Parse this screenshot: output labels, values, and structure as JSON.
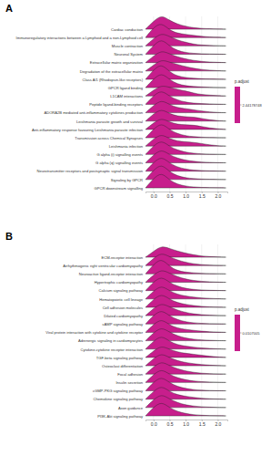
{
  "chart_data": [
    {
      "type": "ridgeline",
      "title": "A",
      "color": "#c71e8c",
      "grid": true,
      "colorbar_title": "p.adjust",
      "colorbar_ticks": [
        2.44178748
      ],
      "xlim": [
        -0.25,
        2.3
      ],
      "xticks": [
        {
          "value": 0,
          "label": "0.0"
        },
        {
          "value": 0.5,
          "label": "0.5"
        },
        {
          "value": 1,
          "label": "1.0"
        },
        {
          "value": 1.5,
          "label": "1.5"
        },
        {
          "value": 2,
          "label": "2.0"
        }
      ],
      "x": [
        -0.25,
        0,
        0.25,
        0.5,
        0.75,
        1,
        1.25,
        1.5,
        1.75,
        2,
        2.25
      ],
      "categories": [
        "Cardiac conduction",
        "Immunoregulatory interactions between a Lymphoid and a non-Lymphoid cell",
        "Muscle contraction",
        "Neuronal System",
        "Extracellular matrix organization",
        "Degradation of the extracellular matrix",
        "Class A/1 (Rhodopsin-like receptors)",
        "GPCR ligand binding",
        "L1CAM interactions",
        "Peptide ligand-binding receptors",
        "ADORA2B mediated anti-inflammatory cytokines production",
        "Leishmania parasite growth and survival",
        "Anti-inflammatory response favouring Leishmania parasite infection",
        "Transmission across Chemical Synapses",
        "Leishmania infection",
        "G alpha (i) signalling events",
        "G alpha (q) signalling events",
        "Neurotransmitter receptors and postsynaptic signal transmission",
        "Signaling by GPCR",
        "GPCR downstream signalling"
      ],
      "densities": [
        [
          0,
          0.55,
          1.0,
          0.6,
          0.35,
          0.2,
          0.1,
          0.05,
          0.03,
          0.01,
          0
        ],
        [
          0,
          0.7,
          1.05,
          0.5,
          0.3,
          0.22,
          0.15,
          0.08,
          0.04,
          0.02,
          0
        ],
        [
          0,
          0.5,
          0.9,
          0.65,
          0.4,
          0.25,
          0.12,
          0.06,
          0.03,
          0.01,
          0
        ],
        [
          0,
          0.6,
          1.1,
          0.55,
          0.25,
          0.12,
          0.06,
          0.03,
          0.02,
          0.01,
          0
        ],
        [
          0,
          0.45,
          0.85,
          0.6,
          0.4,
          0.25,
          0.15,
          0.08,
          0.04,
          0.02,
          0
        ],
        [
          0,
          0.4,
          0.8,
          0.6,
          0.45,
          0.3,
          0.18,
          0.1,
          0.05,
          0.02,
          0
        ],
        [
          0,
          0.65,
          1.1,
          0.5,
          0.22,
          0.12,
          0.07,
          0.04,
          0.02,
          0.01,
          0
        ],
        [
          0,
          0.6,
          1.05,
          0.55,
          0.25,
          0.13,
          0.08,
          0.05,
          0.03,
          0.01,
          0
        ],
        [
          0,
          0.4,
          0.75,
          0.6,
          0.45,
          0.35,
          0.2,
          0.1,
          0.06,
          0.03,
          0
        ],
        [
          0,
          0.6,
          1.0,
          0.55,
          0.3,
          0.15,
          0.08,
          0.05,
          0.03,
          0.01,
          0
        ],
        [
          0,
          0.5,
          0.9,
          0.55,
          0.35,
          0.28,
          0.2,
          0.12,
          0.05,
          0.02,
          0
        ],
        [
          0,
          0.5,
          0.85,
          0.5,
          0.35,
          0.3,
          0.28,
          0.18,
          0.08,
          0.03,
          0
        ],
        [
          0,
          0.45,
          0.8,
          0.5,
          0.35,
          0.32,
          0.3,
          0.2,
          0.1,
          0.04,
          0
        ],
        [
          0,
          0.6,
          1.05,
          0.55,
          0.28,
          0.14,
          0.07,
          0.04,
          0.02,
          0.01,
          0
        ],
        [
          0,
          0.5,
          0.85,
          0.5,
          0.35,
          0.3,
          0.26,
          0.18,
          0.08,
          0.03,
          0
        ],
        [
          0,
          0.6,
          1.0,
          0.55,
          0.3,
          0.16,
          0.08,
          0.04,
          0.02,
          0.01,
          0
        ],
        [
          0,
          0.55,
          0.95,
          0.55,
          0.32,
          0.18,
          0.1,
          0.05,
          0.03,
          0.01,
          0
        ],
        [
          0,
          0.6,
          1.05,
          0.55,
          0.28,
          0.14,
          0.07,
          0.04,
          0.02,
          0.01,
          0
        ],
        [
          0,
          0.65,
          1.1,
          0.52,
          0.25,
          0.12,
          0.06,
          0.03,
          0.02,
          0.01,
          0
        ],
        [
          0,
          0.65,
          1.1,
          0.52,
          0.25,
          0.12,
          0.06,
          0.03,
          0.02,
          0.01,
          0
        ]
      ]
    },
    {
      "type": "ridgeline",
      "title": "B",
      "color": "#c71e8c",
      "grid": true,
      "colorbar_title": "p.adjust",
      "colorbar_ticks": [
        0.0107005
      ],
      "xlim": [
        -0.25,
        2.3
      ],
      "xticks": [
        {
          "value": 0,
          "label": "0.0"
        },
        {
          "value": 0.5,
          "label": "0.5"
        },
        {
          "value": 1,
          "label": "1.0"
        },
        {
          "value": 1.5,
          "label": "1.5"
        },
        {
          "value": 2,
          "label": "2.0"
        }
      ],
      "x": [
        -0.25,
        0,
        0.25,
        0.5,
        0.75,
        1,
        1.25,
        1.5,
        1.75,
        2,
        2.25
      ],
      "categories": [
        "ECM-receptor interaction",
        "Arrhythmogenic right ventricular cardiomyopathy",
        "Neuroactive ligand-receptor interaction",
        "Hypertrophic cardiomyopathy",
        "Calcium signaling pathway",
        "Hematopoietic cell lineage",
        "Cell adhesion molecules",
        "Dilated cardiomyopathy",
        "cAMP signaling pathway",
        "Viral protein interaction with cytokine and cytokine receptor",
        "Adrenergic signaling in cardiomyocytes",
        "Cytokine-cytokine receptor interaction",
        "TGF-beta signaling pathway",
        "Osteoclast differentiation",
        "Focal adhesion",
        "Insulin secretion",
        "cGMP-PKG signaling pathway",
        "Chemokine signaling pathway",
        "Axon guidance",
        "PI3K-Akt signaling pathway"
      ],
      "densities": [
        [
          0,
          0.4,
          0.8,
          0.6,
          0.42,
          0.28,
          0.16,
          0.08,
          0.04,
          0.02,
          0
        ],
        [
          0,
          0.5,
          0.9,
          0.6,
          0.38,
          0.22,
          0.12,
          0.06,
          0.03,
          0.01,
          0
        ],
        [
          0,
          0.65,
          1.1,
          0.5,
          0.22,
          0.12,
          0.07,
          0.04,
          0.02,
          0.01,
          0
        ],
        [
          0,
          0.5,
          0.9,
          0.62,
          0.38,
          0.22,
          0.12,
          0.06,
          0.03,
          0.01,
          0
        ],
        [
          0,
          0.6,
          1.0,
          0.55,
          0.3,
          0.15,
          0.08,
          0.04,
          0.02,
          0.01,
          0
        ],
        [
          0,
          0.55,
          0.95,
          0.55,
          0.32,
          0.2,
          0.12,
          0.07,
          0.04,
          0.02,
          0
        ],
        [
          0,
          0.55,
          0.95,
          0.55,
          0.32,
          0.2,
          0.12,
          0.06,
          0.03,
          0.01,
          0
        ],
        [
          0,
          0.5,
          0.88,
          0.6,
          0.38,
          0.22,
          0.12,
          0.06,
          0.03,
          0.01,
          0
        ],
        [
          0,
          0.6,
          1.0,
          0.55,
          0.3,
          0.15,
          0.08,
          0.04,
          0.02,
          0.01,
          0
        ],
        [
          0,
          0.55,
          0.95,
          0.5,
          0.3,
          0.2,
          0.14,
          0.08,
          0.04,
          0.02,
          0
        ],
        [
          0,
          0.55,
          0.95,
          0.58,
          0.34,
          0.18,
          0.1,
          0.05,
          0.03,
          0.01,
          0
        ],
        [
          0,
          0.55,
          0.95,
          0.52,
          0.3,
          0.2,
          0.13,
          0.07,
          0.04,
          0.02,
          0
        ],
        [
          0,
          0.45,
          0.82,
          0.55,
          0.38,
          0.28,
          0.22,
          0.15,
          0.08,
          0.03,
          0
        ],
        [
          0,
          0.5,
          0.88,
          0.55,
          0.35,
          0.22,
          0.14,
          0.08,
          0.04,
          0.02,
          0
        ],
        [
          0,
          0.5,
          0.9,
          0.58,
          0.36,
          0.22,
          0.12,
          0.06,
          0.03,
          0.01,
          0
        ],
        [
          0,
          0.55,
          0.95,
          0.55,
          0.32,
          0.18,
          0.1,
          0.05,
          0.03,
          0.01,
          0
        ],
        [
          0,
          0.6,
          1.0,
          0.55,
          0.3,
          0.16,
          0.08,
          0.04,
          0.02,
          0.01,
          0
        ],
        [
          0,
          0.55,
          0.95,
          0.52,
          0.3,
          0.2,
          0.12,
          0.06,
          0.03,
          0.01,
          0
        ],
        [
          0,
          0.55,
          0.95,
          0.58,
          0.34,
          0.18,
          0.1,
          0.05,
          0.03,
          0.01,
          0
        ],
        [
          0,
          0.6,
          1.0,
          0.56,
          0.3,
          0.16,
          0.08,
          0.04,
          0.02,
          0.01,
          0
        ]
      ]
    }
  ]
}
